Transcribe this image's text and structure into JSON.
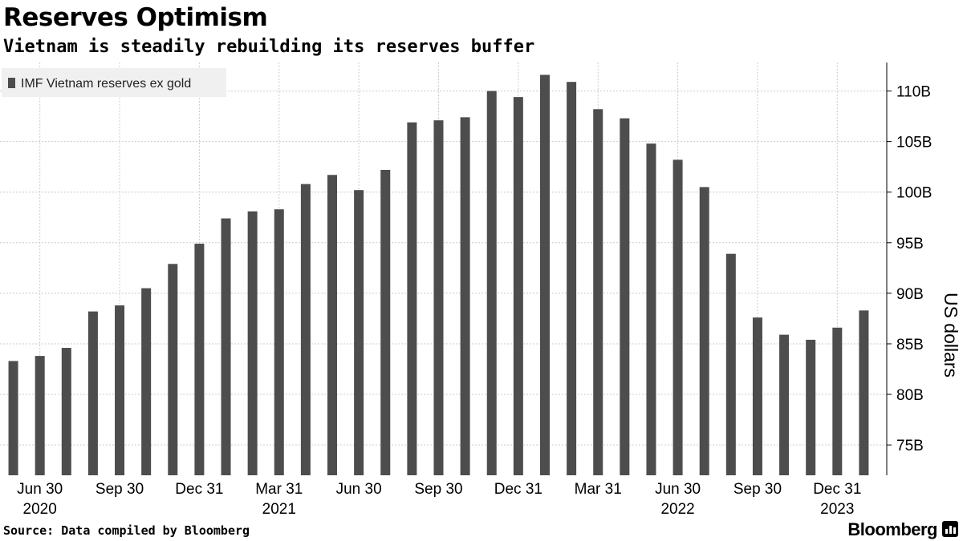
{
  "title": "Reserves Optimism",
  "subtitle": "Vietnam is steadily rebuilding its reserves buffer",
  "source": "Source: Data compiled by Bloomberg",
  "brand": "Bloomberg",
  "colors": {
    "bar": "#4d4d4d",
    "grid": "#cccccc",
    "legend_bg": "#f0f0f0",
    "background": "#ffffff"
  },
  "chart_data": {
    "type": "bar",
    "title": "Reserves Optimism",
    "subtitle": "Vietnam is steadily rebuilding its reserves buffer",
    "xlabel": "",
    "ylabel": "US dollars",
    "legend": [
      "IMF Vietnam reserves ex gold"
    ],
    "legend_position": "top-left",
    "grid": true,
    "y_axis_side": "right",
    "ylim": [
      72,
      112.5
    ],
    "yticks": [
      75,
      80,
      85,
      90,
      95,
      100,
      105,
      110
    ],
    "ytick_labels": [
      "75B",
      "80B",
      "85B",
      "90B",
      "95B",
      "100B",
      "105B",
      "110B"
    ],
    "x_tick_labels": [
      {
        "index": 1,
        "label": "Jun 30",
        "year": "2020"
      },
      {
        "index": 4,
        "label": "Sep 30",
        "year": ""
      },
      {
        "index": 7,
        "label": "Dec 31",
        "year": ""
      },
      {
        "index": 10,
        "label": "Mar 31",
        "year": "2021"
      },
      {
        "index": 13,
        "label": "Jun 30",
        "year": ""
      },
      {
        "index": 16,
        "label": "Sep 30",
        "year": ""
      },
      {
        "index": 19,
        "label": "Dec 31",
        "year": ""
      },
      {
        "index": 22,
        "label": "Mar 31",
        "year": ""
      },
      {
        "index": 25,
        "label": "Jun 30",
        "year": "2022"
      },
      {
        "index": 28,
        "label": "Sep 30",
        "year": ""
      },
      {
        "index": 31,
        "label": "Dec 31",
        "year": "2023"
      }
    ],
    "series": [
      {
        "name": "IMF Vietnam reserves ex gold",
        "unit": "B USD",
        "values": [
          83.3,
          83.8,
          84.6,
          88.2,
          88.8,
          90.5,
          92.9,
          94.9,
          97.4,
          98.1,
          98.3,
          100.8,
          101.7,
          100.2,
          102.2,
          106.9,
          107.1,
          107.4,
          110.0,
          109.4,
          111.6,
          110.9,
          108.2,
          107.3,
          104.8,
          103.2,
          100.5,
          93.9,
          87.6,
          85.9,
          85.4,
          86.6,
          88.3
        ]
      }
    ]
  }
}
